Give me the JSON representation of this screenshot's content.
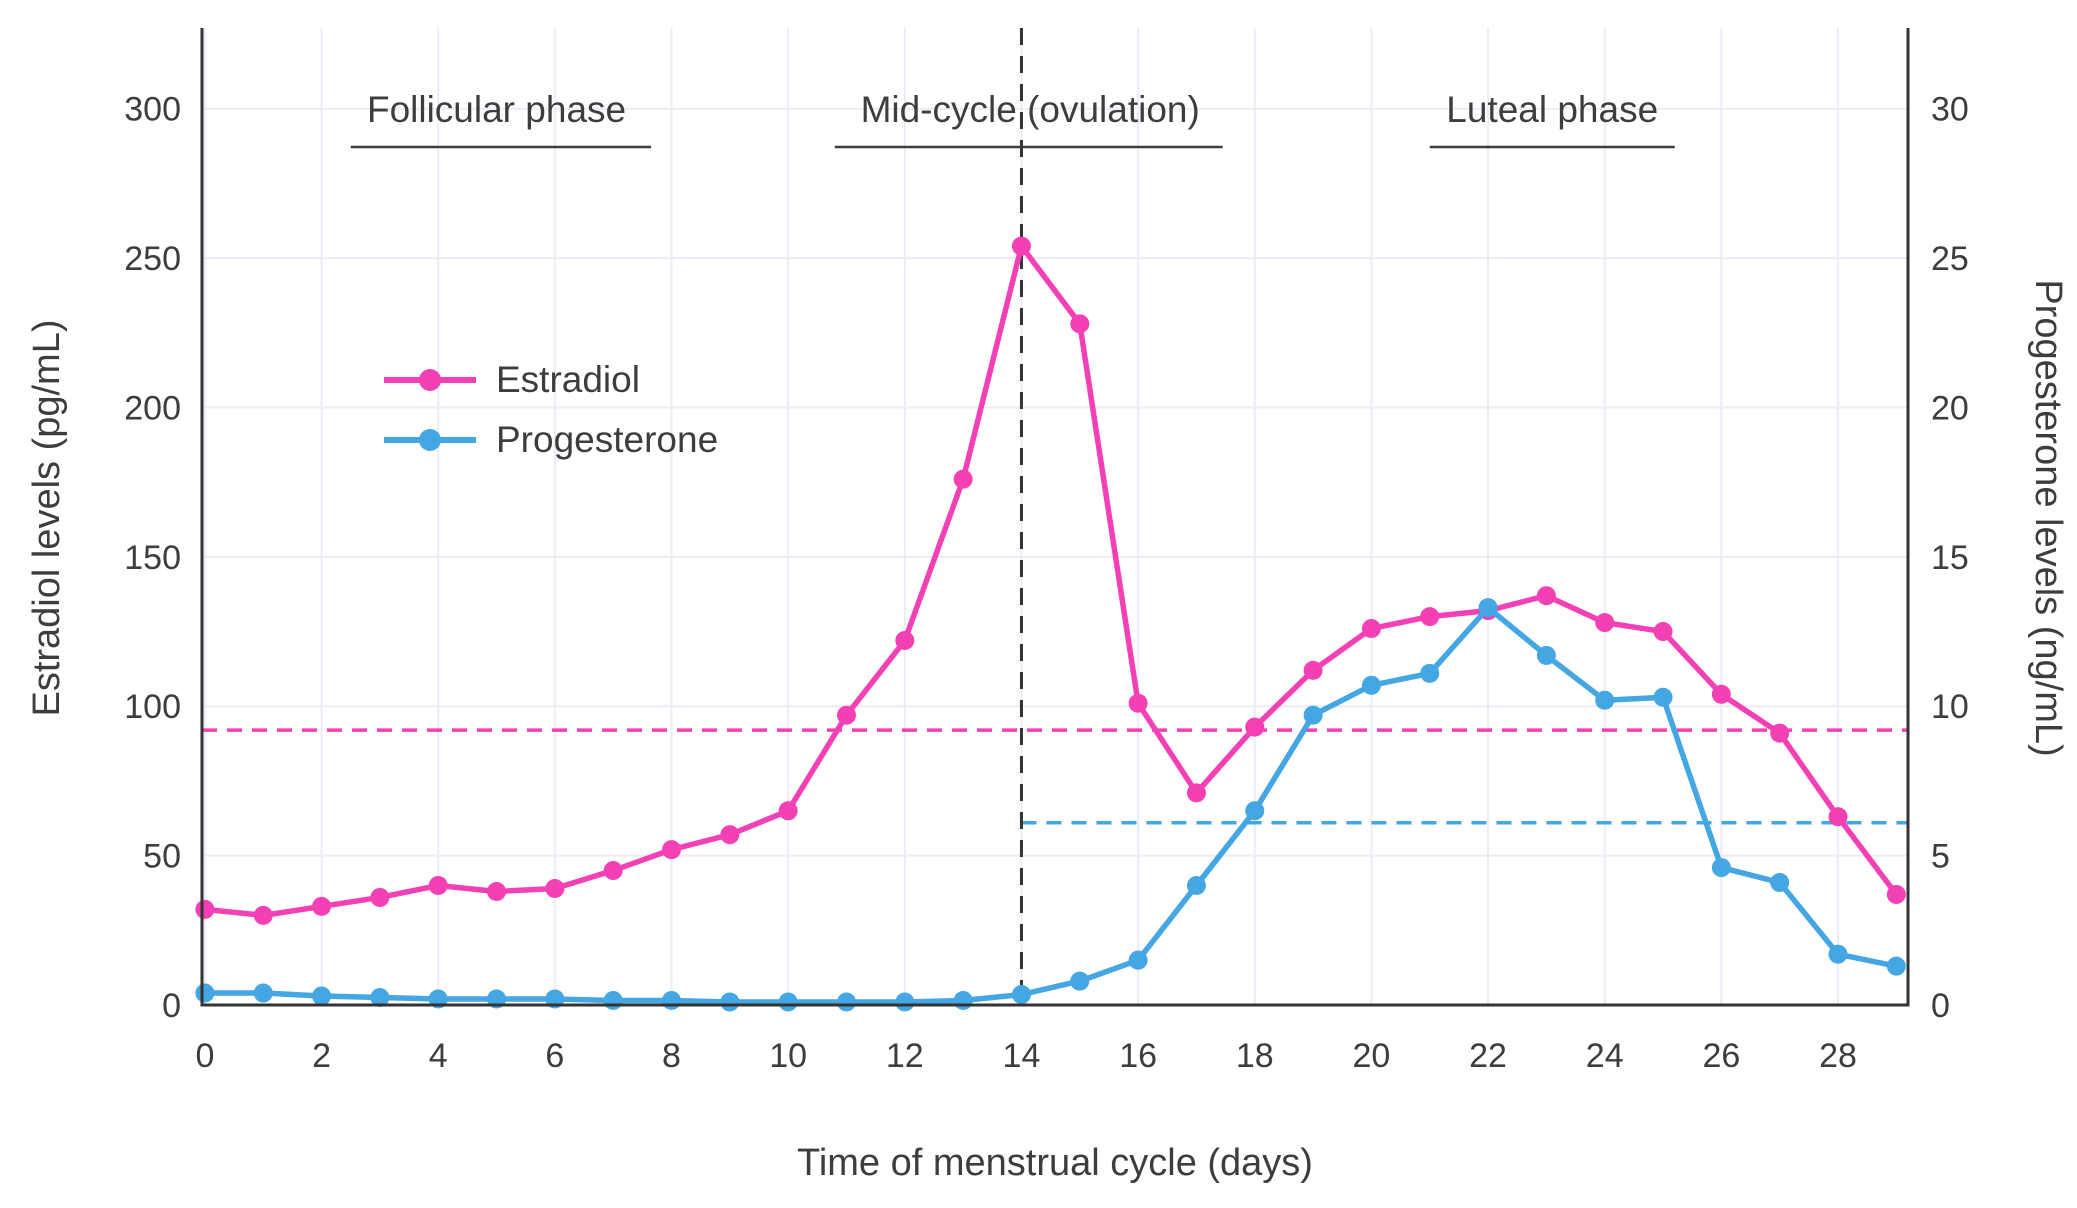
{
  "figure": {
    "xlabel": "Time of menstrual cycle (days)",
    "ylabel_left": "Estradiol levels (pg/mL)",
    "ylabel_right": "Progesterone levels (ng/mL)"
  },
  "theme": {
    "grid": "#eaecf6",
    "spine": "#333333",
    "text": "#3d3d3d",
    "background": "#ffffff",
    "estradiol_color": "#f340b4",
    "progesterone_color": "#44a6e3"
  },
  "chart_data": {
    "type": "line",
    "title": "",
    "xlabel": "Time of menstrual cycle (days)",
    "ylabel_left": "Estradiol levels (pg/mL)",
    "ylabel_right": "Progesterone levels (ng/mL)",
    "x": [
      0,
      1,
      2,
      3,
      4,
      5,
      6,
      7,
      8,
      9,
      10,
      11,
      12,
      13,
      14,
      15,
      16,
      17,
      18,
      19,
      20,
      21,
      22,
      23,
      24,
      25,
      26,
      27,
      28,
      29
    ],
    "series": [
      {
        "name": "Estradiol",
        "axis": "left",
        "color": "#f340b4",
        "values": [
          32,
          30,
          33,
          36,
          40,
          38,
          39,
          45,
          52,
          57,
          65,
          97,
          122,
          176,
          254,
          228,
          101,
          71,
          93,
          112,
          126,
          130,
          132,
          137,
          128,
          125,
          104,
          91,
          63,
          37
        ]
      },
      {
        "name": "Progesterone",
        "axis": "right",
        "color": "#44a6e3",
        "values": [
          0.4,
          0.4,
          0.3,
          0.25,
          0.2,
          0.2,
          0.2,
          0.15,
          0.15,
          0.1,
          0.1,
          0.1,
          0.1,
          0.15,
          0.35,
          0.8,
          1.5,
          4.0,
          6.5,
          9.7,
          10.7,
          11.1,
          13.3,
          11.7,
          10.2,
          10.3,
          4.6,
          4.1,
          1.7,
          1.3
        ]
      }
    ],
    "xlim": [
      -0.05,
      29.2
    ],
    "ylim_left": [
      0,
      323
    ],
    "ylim_right": [
      0,
      32.3
    ],
    "xticks": [
      0,
      2,
      4,
      6,
      8,
      10,
      12,
      14,
      16,
      18,
      20,
      22,
      24,
      26,
      28
    ],
    "yticks_left": [
      0,
      50,
      100,
      150,
      200,
      250,
      300
    ],
    "yticks_right": [
      0,
      5,
      10,
      15,
      20,
      25,
      30
    ],
    "grid": true,
    "legend_position": "upper-left-inside",
    "annotations": {
      "phases": [
        {
          "label": "Follicular phase",
          "x_center": 5.0,
          "underline": [
            2.5,
            7.65
          ]
        },
        {
          "label": "Mid-cycle (ovulation)",
          "x_center": 14.15,
          "underline": [
            10.8,
            17.45
          ]
        },
        {
          "label": "Luteal phase",
          "x_center": 23.1,
          "underline": [
            21.0,
            25.2
          ]
        }
      ],
      "vline": {
        "x": 14,
        "color": "#333333",
        "style": "dashed"
      },
      "hlines": [
        {
          "name": "estradiol-dashed-level",
          "axis": "left",
          "y": 92,
          "x_start": -0.05,
          "x_end": 29.2,
          "color": "#f340b4"
        },
        {
          "name": "progesterone-dashed-level",
          "axis": "right",
          "y": 6.1,
          "x_start": 14,
          "x_end": 29.2,
          "color": "#44a6e3"
        }
      ]
    }
  }
}
